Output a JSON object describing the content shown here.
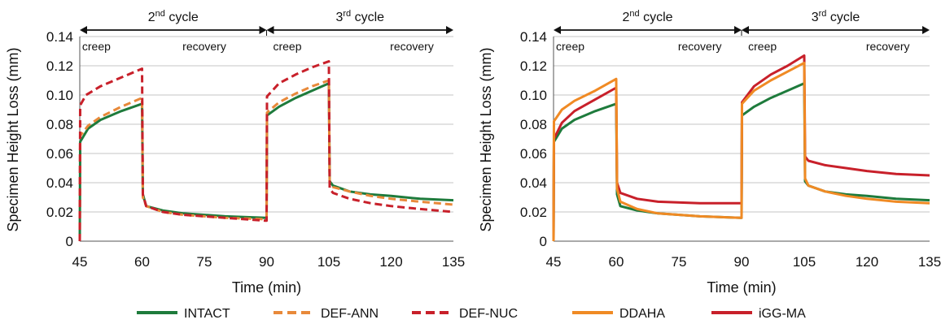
{
  "chart_data": [
    {
      "type": "line",
      "xlabel": "Time (min)",
      "ylabel": "Specimen Height Loss (mm)",
      "xlim": [
        45,
        135
      ],
      "ylim": [
        0,
        0.14
      ],
      "xticks": [
        "45",
        "60",
        "75",
        "90",
        "105",
        "120",
        "135"
      ],
      "yticks": [
        "0",
        "0.02",
        "0.04",
        "0.06",
        "0.08",
        "0.10",
        "0.12",
        "0.14"
      ],
      "grid": "horizontal",
      "cycles": [
        {
          "base": "2",
          "sup": "nd",
          "text": " cycle",
          "from": 45,
          "to": 90
        },
        {
          "base": "3",
          "sup": "rd",
          "text": " cycle",
          "from": 90,
          "to": 135
        }
      ],
      "phase_labels": [
        {
          "text": "creep",
          "x": 49
        },
        {
          "text": "recovery",
          "x": 75
        },
        {
          "text": "creep",
          "x": 95
        },
        {
          "text": "recovery",
          "x": 125
        }
      ],
      "series": [
        {
          "name": "INTACT",
          "color": "#1e7b3c",
          "dash": false,
          "points": [
            [
              45,
              0
            ],
            [
              45.1,
              0.068
            ],
            [
              47,
              0.077
            ],
            [
              50,
              0.083
            ],
            [
              55,
              0.089
            ],
            [
              60,
              0.094
            ],
            [
              60.2,
              0.032
            ],
            [
              61,
              0.024
            ],
            [
              65,
              0.021
            ],
            [
              70,
              0.019
            ],
            [
              80,
              0.017
            ],
            [
              89.8,
              0.016
            ],
            [
              90,
              0.016
            ],
            [
              90.1,
              0.086
            ],
            [
              93,
              0.092
            ],
            [
              97,
              0.098
            ],
            [
              101,
              0.103
            ],
            [
              105,
              0.108
            ],
            [
              105.2,
              0.041
            ],
            [
              106,
              0.038
            ],
            [
              110,
              0.034
            ],
            [
              115,
              0.032
            ],
            [
              120,
              0.031
            ],
            [
              127,
              0.029
            ],
            [
              135,
              0.028
            ]
          ]
        },
        {
          "name": "DEF-ANN",
          "color": "#e8893a",
          "dash": true,
          "points": [
            [
              45,
              0
            ],
            [
              45.1,
              0.072
            ],
            [
              47,
              0.079
            ],
            [
              50,
              0.085
            ],
            [
              55,
              0.092
            ],
            [
              60,
              0.098
            ],
            [
              60.2,
              0.03
            ],
            [
              61,
              0.024
            ],
            [
              65,
              0.02
            ],
            [
              70,
              0.018
            ],
            [
              80,
              0.016
            ],
            [
              89.8,
              0.015
            ],
            [
              90,
              0.015
            ],
            [
              90.1,
              0.088
            ],
            [
              93,
              0.095
            ],
            [
              97,
              0.101
            ],
            [
              101,
              0.106
            ],
            [
              105,
              0.11
            ],
            [
              105.2,
              0.04
            ],
            [
              106,
              0.037
            ],
            [
              110,
              0.034
            ],
            [
              115,
              0.031
            ],
            [
              120,
              0.029
            ],
            [
              127,
              0.027
            ],
            [
              135,
              0.025
            ]
          ]
        },
        {
          "name": "DEF-NUC",
          "color": "#c8202a",
          "dash": true,
          "points": [
            [
              45,
              0
            ],
            [
              45.1,
              0.093
            ],
            [
              46.5,
              0.1
            ],
            [
              50,
              0.106
            ],
            [
              55,
              0.112
            ],
            [
              60,
              0.118
            ],
            [
              60.2,
              0.032
            ],
            [
              61,
              0.024
            ],
            [
              65,
              0.02
            ],
            [
              70,
              0.018
            ],
            [
              80,
              0.016
            ],
            [
              89.8,
              0.014
            ],
            [
              90,
              0.014
            ],
            [
              90.1,
              0.099
            ],
            [
              93,
              0.108
            ],
            [
              97,
              0.114
            ],
            [
              101,
              0.119
            ],
            [
              105,
              0.123
            ],
            [
              105.2,
              0.036
            ],
            [
              106,
              0.033
            ],
            [
              110,
              0.029
            ],
            [
              115,
              0.026
            ],
            [
              120,
              0.024
            ],
            [
              127,
              0.022
            ],
            [
              135,
              0.02
            ]
          ]
        }
      ]
    },
    {
      "type": "line",
      "xlabel": "Time (min)",
      "ylabel": "Specimen Height Loss (mm)",
      "xlim": [
        45,
        135
      ],
      "ylim": [
        0,
        0.14
      ],
      "xticks": [
        "45",
        "60",
        "75",
        "90",
        "105",
        "120",
        "135"
      ],
      "yticks": [
        "0",
        "0.02",
        "0.04",
        "0.06",
        "0.08",
        "0.10",
        "0.12",
        "0.14"
      ],
      "grid": "horizontal",
      "cycles": [
        {
          "base": "2",
          "sup": "nd",
          "text": " cycle",
          "from": 45,
          "to": 90
        },
        {
          "base": "3",
          "sup": "rd",
          "text": " cycle",
          "from": 90,
          "to": 135
        }
      ],
      "phase_labels": [
        {
          "text": "creep",
          "x": 49
        },
        {
          "text": "recovery",
          "x": 80
        },
        {
          "text": "creep",
          "x": 95
        },
        {
          "text": "recovery",
          "x": 125
        }
      ],
      "series": [
        {
          "name": "INTACT",
          "color": "#1e7b3c",
          "dash": false,
          "points": [
            [
              45,
              0
            ],
            [
              45.1,
              0.068
            ],
            [
              47,
              0.077
            ],
            [
              50,
              0.083
            ],
            [
              55,
              0.089
            ],
            [
              60,
              0.094
            ],
            [
              60.2,
              0.032
            ],
            [
              61,
              0.024
            ],
            [
              65,
              0.021
            ],
            [
              70,
              0.019
            ],
            [
              80,
              0.017
            ],
            [
              89.8,
              0.016
            ],
            [
              90,
              0.016
            ],
            [
              90.1,
              0.086
            ],
            [
              93,
              0.092
            ],
            [
              97,
              0.098
            ],
            [
              101,
              0.103
            ],
            [
              105,
              0.108
            ],
            [
              105.2,
              0.041
            ],
            [
              106,
              0.038
            ],
            [
              110,
              0.034
            ],
            [
              115,
              0.032
            ],
            [
              120,
              0.031
            ],
            [
              127,
              0.029
            ],
            [
              135,
              0.028
            ]
          ]
        },
        {
          "name": "iGG-MA",
          "color": "#c8202a",
          "dash": false,
          "points": [
            [
              45,
              0
            ],
            [
              45.1,
              0.07
            ],
            [
              47,
              0.081
            ],
            [
              50,
              0.089
            ],
            [
              55,
              0.097
            ],
            [
              60,
              0.105
            ],
            [
              60.2,
              0.04
            ],
            [
              61,
              0.033
            ],
            [
              65,
              0.029
            ],
            [
              70,
              0.027
            ],
            [
              80,
              0.026
            ],
            [
              89.8,
              0.026
            ],
            [
              90,
              0.026
            ],
            [
              90.1,
              0.095
            ],
            [
              93,
              0.106
            ],
            [
              97,
              0.114
            ],
            [
              101,
              0.12
            ],
            [
              105,
              0.127
            ],
            [
              105.2,
              0.058
            ],
            [
              106,
              0.055
            ],
            [
              110,
              0.052
            ],
            [
              115,
              0.05
            ],
            [
              120,
              0.048
            ],
            [
              127,
              0.046
            ],
            [
              135,
              0.045
            ]
          ]
        },
        {
          "name": "DDAHA",
          "color": "#f08a24",
          "dash": false,
          "points": [
            [
              45,
              0
            ],
            [
              45.1,
              0.082
            ],
            [
              47,
              0.09
            ],
            [
              50,
              0.096
            ],
            [
              55,
              0.103
            ],
            [
              60,
              0.111
            ],
            [
              60.2,
              0.036
            ],
            [
              61,
              0.027
            ],
            [
              65,
              0.022
            ],
            [
              70,
              0.019
            ],
            [
              80,
              0.017
            ],
            [
              89.8,
              0.016
            ],
            [
              90,
              0.016
            ],
            [
              90.1,
              0.094
            ],
            [
              93,
              0.103
            ],
            [
              97,
              0.11
            ],
            [
              101,
              0.116
            ],
            [
              105,
              0.122
            ],
            [
              105.2,
              0.043
            ],
            [
              106,
              0.038
            ],
            [
              110,
              0.034
            ],
            [
              115,
              0.031
            ],
            [
              120,
              0.029
            ],
            [
              127,
              0.027
            ],
            [
              135,
              0.026
            ]
          ]
        }
      ]
    }
  ],
  "legend": [
    {
      "name": "INTACT",
      "color": "#1e7b3c",
      "dash": false
    },
    {
      "name": "DEF-ANN",
      "color": "#e8893a",
      "dash": true
    },
    {
      "name": "DEF-NUC",
      "color": "#c8202a",
      "dash": true
    },
    {
      "name": "DDAHA",
      "color": "#f08a24",
      "dash": false
    },
    {
      "name": "iGG-MA",
      "color": "#c8202a",
      "dash": false
    }
  ]
}
